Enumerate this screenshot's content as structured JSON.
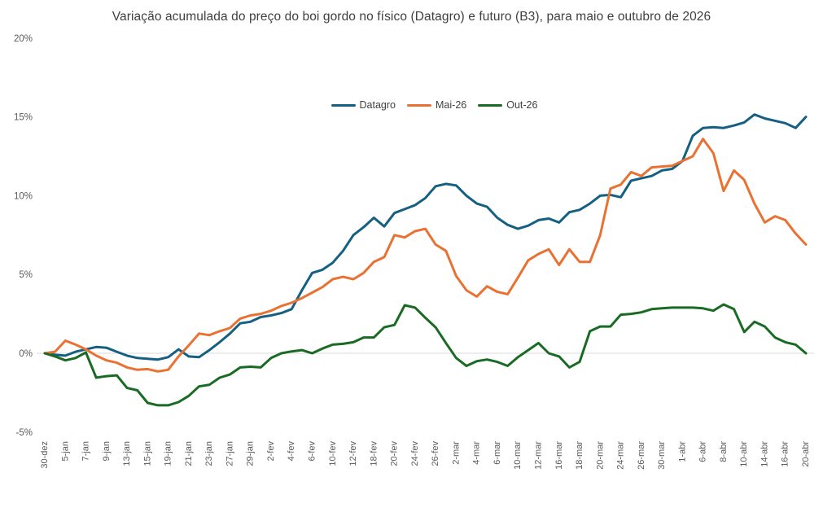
{
  "title": "Variação acumulada do preço do boi gordo no físico (Datagro) e futuro (B3), para maio e outubro de 2026",
  "colors": {
    "background": "#ffffff",
    "title_text": "#3f3f3f",
    "axis_text": "#595959",
    "zero_gridline": "#d9d9d9",
    "datagro_blue": "#156082",
    "mai26_orange": "#e97132",
    "out26_green": "#196b24"
  },
  "legend": {
    "position": "top-center",
    "items": [
      {
        "label": "Datagro",
        "color": "#156082"
      },
      {
        "label": "Mai-26",
        "color": "#e97132"
      },
      {
        "label": "Out-26",
        "color": "#196b24"
      }
    ]
  },
  "chart_data": {
    "type": "line",
    "title": "Variação acumulada do preço do boi gordo no físico (Datagro) e futuro (B3), para maio e outubro de 2026",
    "xlabel": "",
    "ylabel": "",
    "ylim": [
      -5,
      20
    ],
    "y_tick_labels": [
      "20%",
      "15%",
      "10%",
      "5%",
      "0%",
      "-5%"
    ],
    "y_tick_values": [
      20,
      15,
      10,
      5,
      0,
      -5
    ],
    "grid": "horizontal zero line only",
    "legend_position": "top-center",
    "x_tick_label_rotation": -90,
    "label_every": 2,
    "x_tick_labels": [
      "30-dez",
      "5-jan",
      "7-jan",
      "9-jan",
      "13-jan",
      "15-jan",
      "19-jan",
      "21-jan",
      "23-jan",
      "27-jan",
      "29-jan",
      "2-fev",
      "4-fev",
      "6-fev",
      "10-fev",
      "12-fev",
      "18-fev",
      "20-fev",
      "24-fev",
      "26-fev",
      "2-mar",
      "4-mar",
      "6-mar",
      "10-mar",
      "12-mar",
      "16-mar",
      "18-mar",
      "20-mar",
      "24-mar",
      "26-mar",
      "30-mar",
      "1-abr",
      "6-abr",
      "8-abr",
      "10-abr",
      "14-abr",
      "16-abr",
      "20-abr"
    ],
    "series": [
      {
        "name": "Datagro",
        "color": "#156082",
        "values": [
          0.0,
          -0.1,
          -0.15,
          0.1,
          0.25,
          0.4,
          0.35,
          0.1,
          -0.15,
          -0.3,
          -0.35,
          -0.4,
          -0.25,
          0.25,
          -0.2,
          -0.25,
          0.2,
          0.7,
          1.25,
          1.9,
          2.0,
          2.3,
          2.4,
          2.55,
          2.8,
          4.0,
          5.1,
          5.3,
          5.75,
          6.5,
          7.5,
          8.0,
          8.6,
          8.05,
          8.9,
          9.15,
          9.4,
          9.85,
          10.6,
          10.75,
          10.65,
          10.0,
          9.5,
          9.3,
          8.6,
          8.15,
          7.9,
          8.1,
          8.45,
          8.55,
          8.3,
          8.95,
          9.1,
          9.5,
          10.0,
          10.05,
          9.9,
          10.95,
          11.1,
          11.25,
          11.6,
          11.7,
          12.2,
          13.8,
          14.3,
          14.35,
          14.3,
          14.45,
          14.65,
          15.15,
          14.9,
          14.75,
          14.6,
          14.3,
          15.0
        ]
      },
      {
        "name": "Mai-26",
        "color": "#e97132",
        "values": [
          0.0,
          0.1,
          0.8,
          0.55,
          0.25,
          -0.15,
          -0.45,
          -0.6,
          -0.9,
          -1.05,
          -1.0,
          -1.15,
          -1.05,
          -0.2,
          0.5,
          1.25,
          1.15,
          1.4,
          1.6,
          2.2,
          2.4,
          2.5,
          2.7,
          3.0,
          3.2,
          3.5,
          3.85,
          4.2,
          4.7,
          4.85,
          4.7,
          5.1,
          5.8,
          6.1,
          7.5,
          7.35,
          7.75,
          7.9,
          6.9,
          6.5,
          4.9,
          4.0,
          3.6,
          4.25,
          3.9,
          3.75,
          4.8,
          5.9,
          6.3,
          6.6,
          5.6,
          6.6,
          5.8,
          5.8,
          7.5,
          10.45,
          10.7,
          11.5,
          11.25,
          11.8,
          11.85,
          11.9,
          12.2,
          12.5,
          13.6,
          12.7,
          10.3,
          11.6,
          11.0,
          9.5,
          8.3,
          8.7,
          8.45,
          7.6,
          6.9
        ]
      },
      {
        "name": "Out-26",
        "color": "#196b24",
        "values": [
          0.0,
          -0.2,
          -0.45,
          -0.3,
          0.05,
          -1.55,
          -1.45,
          -1.4,
          -2.2,
          -2.35,
          -3.15,
          -3.3,
          -3.3,
          -3.1,
          -2.7,
          -2.1,
          -2.0,
          -1.55,
          -1.35,
          -0.9,
          -0.85,
          -0.9,
          -0.3,
          0.0,
          0.12,
          0.2,
          0.0,
          0.3,
          0.55,
          0.6,
          0.7,
          1.0,
          1.0,
          1.65,
          1.8,
          3.05,
          2.9,
          2.25,
          1.65,
          0.65,
          -0.3,
          -0.8,
          -0.5,
          -0.4,
          -0.55,
          -0.8,
          -0.25,
          0.2,
          0.65,
          0.0,
          -0.2,
          -0.9,
          -0.55,
          1.4,
          1.7,
          1.7,
          2.45,
          2.5,
          2.6,
          2.8,
          2.85,
          2.9,
          2.9,
          2.9,
          2.85,
          2.7,
          3.1,
          2.8,
          1.35,
          2.0,
          1.7,
          1.0,
          0.7,
          0.55,
          0.0
        ]
      }
    ]
  }
}
